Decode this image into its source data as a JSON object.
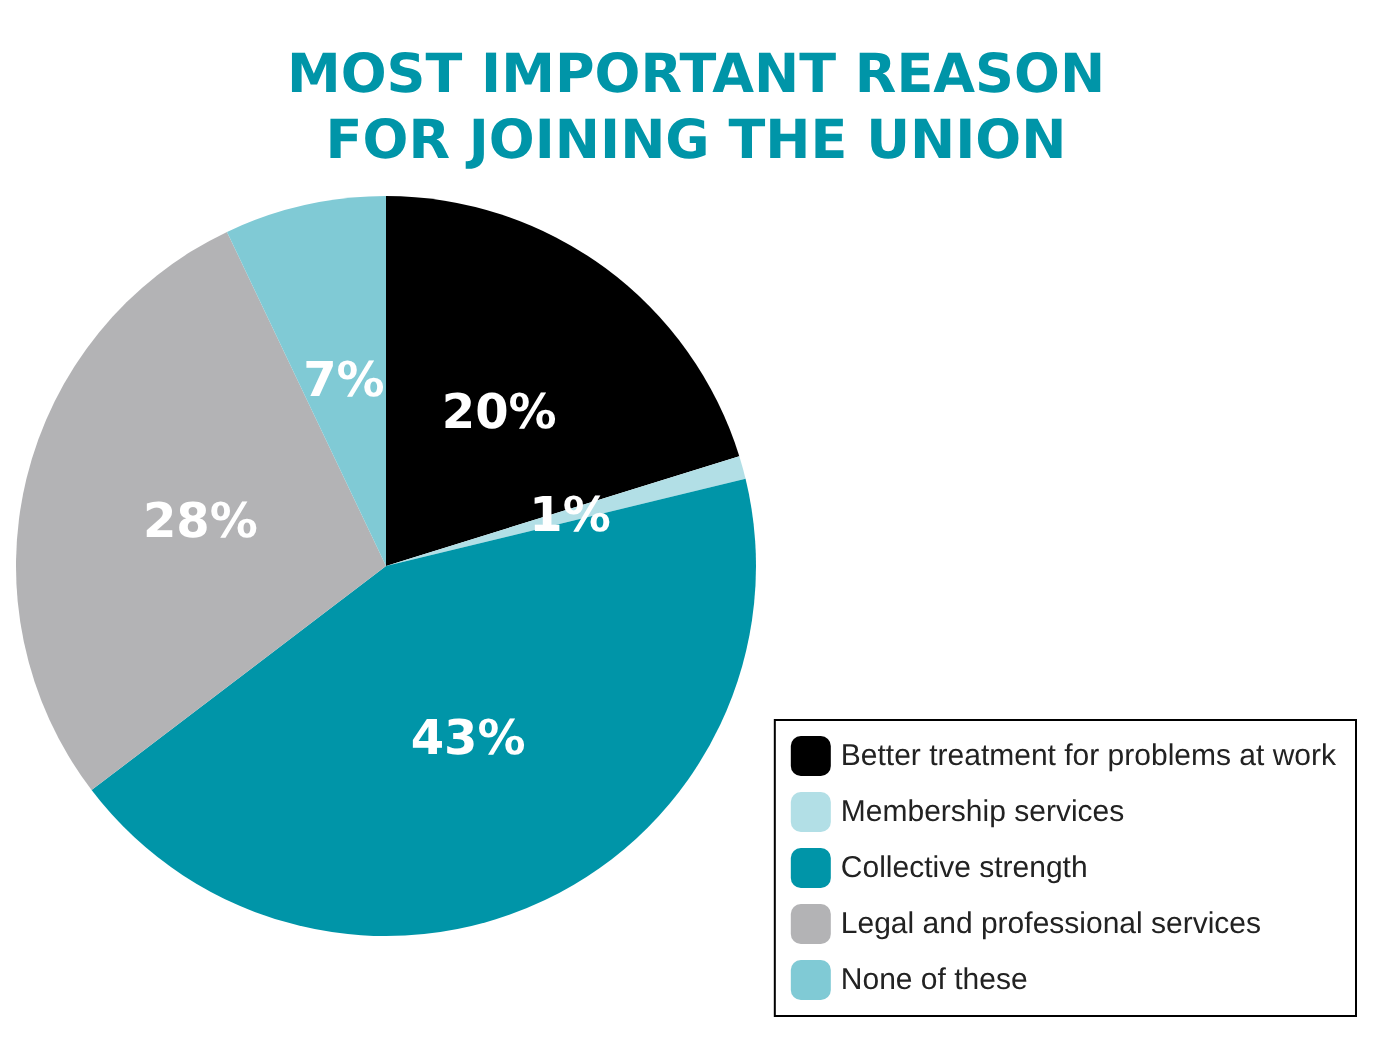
{
  "chart_data": {
    "type": "pie",
    "title": "MOST IMPORTANT REASON\nFOR JOINING THE UNION",
    "categories": [
      "Better treatment for problems at work",
      "Membership services",
      "Collective strength",
      "Legal and professional services",
      "None of these"
    ],
    "values": [
      20,
      1,
      43,
      28,
      7
    ],
    "colors": [
      "#000000",
      "#b2dfe6",
      "#0095a8",
      "#b3b3b5",
      "#80cad5"
    ],
    "value_labels": [
      "20%",
      "1%",
      "43%",
      "28%",
      "7%"
    ],
    "legend": "bottom right"
  }
}
